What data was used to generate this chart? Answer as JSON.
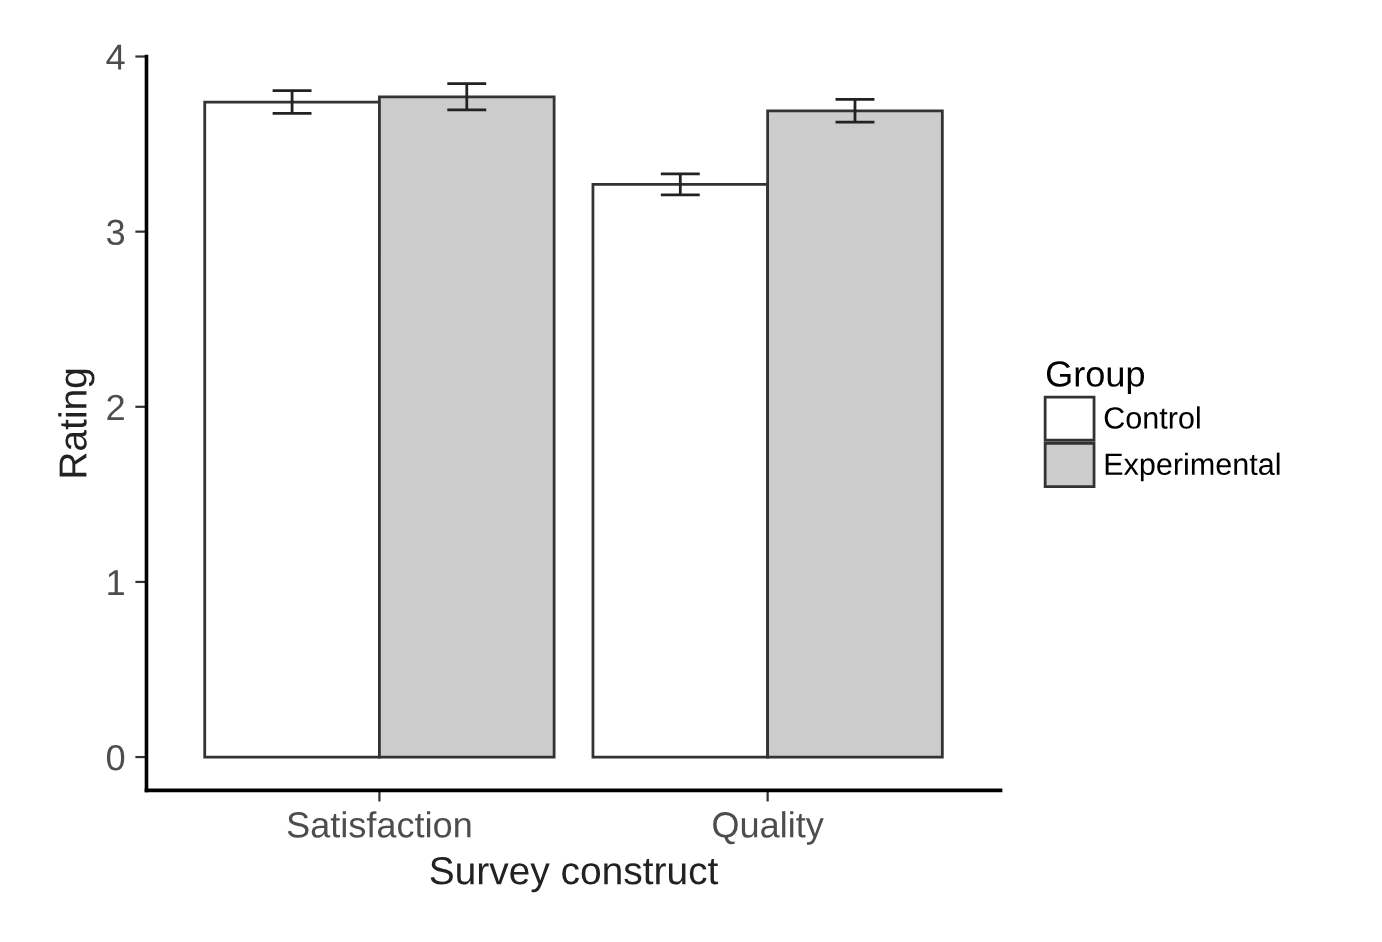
{
  "chart_data": {
    "type": "bar",
    "xlabel": "Survey construct",
    "ylabel": "Rating",
    "legend_title": "Group",
    "categories": [
      "Satisfaction",
      "Quality"
    ],
    "series": [
      {
        "name": "Control",
        "color": "#ffffff",
        "values": [
          3.74,
          3.27
        ],
        "errors": [
          0.065,
          0.06
        ]
      },
      {
        "name": "Experimental",
        "color": "#cccccc",
        "values": [
          3.77,
          3.69
        ],
        "errors": [
          0.075,
          0.065
        ]
      }
    ],
    "ylim": [
      -0.19,
      4
    ],
    "yticks": [
      0,
      1,
      2,
      3,
      4
    ],
    "grid": false,
    "legend": "right"
  }
}
